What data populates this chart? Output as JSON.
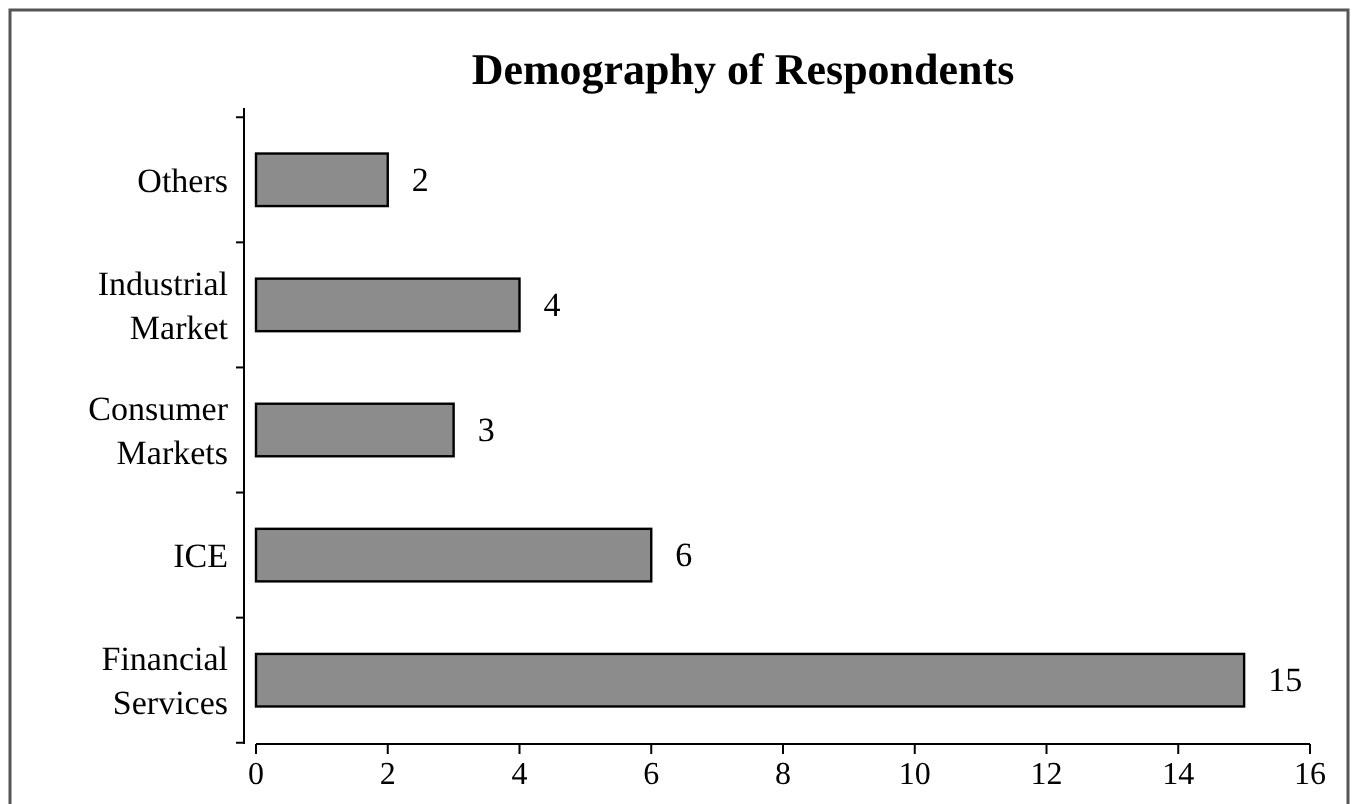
{
  "chart_data": {
    "type": "bar",
    "orientation": "horizontal",
    "title": "Demography of Respondents",
    "categories": [
      "Others",
      "Industrial Market",
      "Consumer Markets",
      "ICE",
      "Financial Services"
    ],
    "values": [
      2,
      4,
      3,
      6,
      15
    ],
    "color": "#8c8c8c",
    "xlim": [
      0,
      16
    ],
    "xticks": [
      0,
      2,
      4,
      6,
      8,
      10,
      12,
      14,
      16
    ],
    "data_labels": true
  }
}
